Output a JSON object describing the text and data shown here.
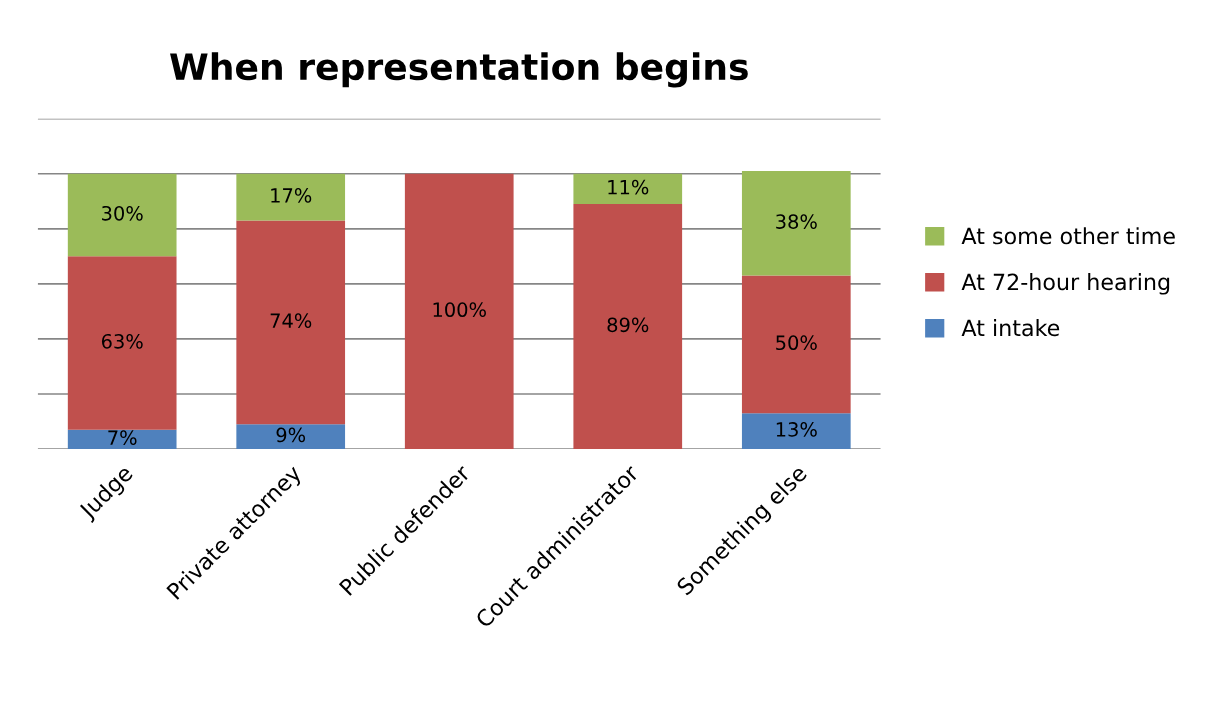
{
  "chart_data": {
    "type": "bar",
    "title": "When representation begins",
    "stacked": true,
    "categories": [
      "Judge",
      "Private attorney",
      "Public defender",
      "Court administrator",
      "Something else"
    ],
    "series": [
      {
        "name": "At intake",
        "color": "#4f81bd",
        "values": [
          7,
          9,
          0,
          0,
          13
        ],
        "value_labels": [
          "7%",
          "9%",
          null,
          null,
          "13%"
        ]
      },
      {
        "name": "At 72-hour hearing",
        "color": "#c0504d",
        "values": [
          63,
          74,
          100,
          89,
          50
        ],
        "value_labels": [
          "63%",
          "74%",
          "100%",
          "89%",
          "50%"
        ]
      },
      {
        "name": "At some other time",
        "color": "#9bbb59",
        "values": [
          30,
          17,
          0,
          11,
          38
        ],
        "value_labels": [
          "30%",
          "17%",
          null,
          "11%",
          "38%"
        ]
      }
    ],
    "ylim": [
      0,
      120
    ],
    "yticks": [
      {
        "value": 0,
        "label": null
      },
      {
        "value": 20,
        "label": null
      },
      {
        "value": 40,
        "label": null
      },
      {
        "value": 60,
        "label": null
      },
      {
        "value": 80,
        "label": null
      },
      {
        "value": 100,
        "label": null
      },
      {
        "value": 120,
        "label": null
      }
    ],
    "tick_labels": "x",
    "grid": "y",
    "legend": "right"
  }
}
